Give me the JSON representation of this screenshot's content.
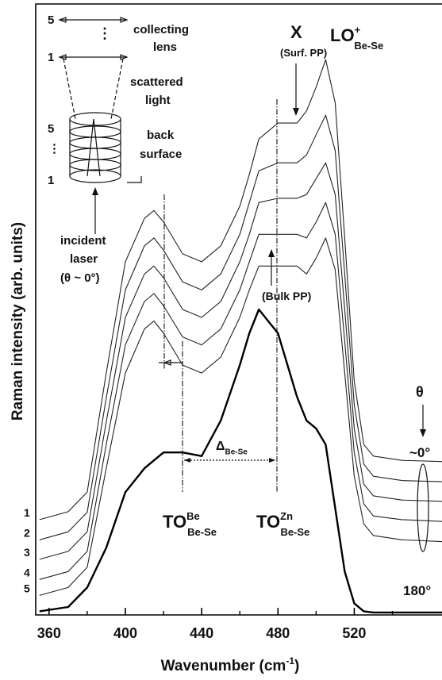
{
  "chart_data": {
    "type": "line",
    "x_label": {
      "text": "Wavenumber (cm",
      "sup": "-1",
      "tail": ")"
    },
    "y_label": "Raman intensity (arb. units)",
    "x": [
      355,
      370,
      380,
      390,
      400,
      410,
      415,
      420,
      430,
      440,
      450,
      460,
      465,
      470,
      480,
      490,
      495,
      500,
      505,
      510,
      515,
      520,
      525,
      530,
      545,
      566
    ],
    "xlim": [
      353,
      566
    ],
    "xticks": [
      360,
      400,
      440,
      480,
      520
    ],
    "xticks_minor": [
      380,
      420,
      460,
      500,
      540
    ],
    "ylim": [
      0,
      100
    ],
    "series": [
      {
        "name": "1",
        "color": "#222",
        "values": [
          15.6,
          16.9,
          20.1,
          39.6,
          57.8,
          64.9,
          66.2,
          64.3,
          59.1,
          57.8,
          60.4,
          66.9,
          72.1,
          77.9,
          80.5,
          80.5,
          82.5,
          86.4,
          90.9,
          83.8,
          61.7,
          38.3,
          27.9,
          26.0,
          25.3,
          25.1
        ]
      },
      {
        "name": "2",
        "color": "#222",
        "values": [
          12.3,
          13.6,
          16.8,
          35.5,
          53.2,
          60.4,
          61.7,
          59.7,
          54.5,
          53.2,
          55.8,
          62.3,
          67.5,
          72.7,
          74.0,
          74.0,
          75.3,
          78.6,
          81.8,
          76.0,
          55.8,
          34.4,
          24.7,
          22.7,
          22.0,
          21.8
        ]
      },
      {
        "name": "3",
        "color": "#222",
        "values": [
          9.1,
          10.4,
          13.6,
          31.6,
          48.7,
          55.8,
          57.1,
          55.2,
          50.0,
          48.7,
          51.3,
          57.8,
          62.3,
          67.5,
          68.2,
          68.2,
          68.8,
          71.4,
          74.0,
          68.8,
          50.0,
          30.5,
          21.4,
          19.5,
          18.8,
          18.6
        ]
      },
      {
        "name": "4",
        "color": "#222",
        "values": [
          5.8,
          7.1,
          10.4,
          27.9,
          44.2,
          51.3,
          52.6,
          50.6,
          45.5,
          44.2,
          46.8,
          53.2,
          57.8,
          62.3,
          62.3,
          62.3,
          61.7,
          64.3,
          67.5,
          62.3,
          44.8,
          26.6,
          18.2,
          16.2,
          15.6,
          15.3
        ]
      },
      {
        "name": "5",
        "color": "#222",
        "values": [
          3.2,
          4.5,
          7.8,
          24.0,
          39.6,
          46.8,
          48.1,
          46.1,
          40.9,
          39.6,
          42.2,
          48.7,
          53.2,
          57.1,
          57.1,
          57.1,
          55.8,
          58.4,
          61.7,
          56.5,
          39.6,
          22.7,
          14.9,
          13.0,
          12.3,
          12.0
        ]
      },
      {
        "color": "#000",
        "values": [
          0.6,
          1.3,
          4.5,
          11.0,
          20.1,
          24.0,
          25.3,
          26.6,
          26.6,
          26.0,
          31.8,
          40.9,
          46.1,
          50.0,
          46.1,
          35.7,
          31.8,
          30.5,
          27.9,
          17.5,
          7.1,
          1.9,
          0.6,
          0.4,
          0.4,
          0.4
        ]
      }
    ],
    "annotations": [
      {
        "text": "5"
      },
      {
        "text": "1"
      },
      {
        "text": "⋮"
      },
      {
        "text": "collecting"
      },
      {
        "text": "lens"
      },
      {
        "text": "scattered"
      },
      {
        "text": "light"
      },
      {
        "text": "back"
      },
      {
        "text": "surface"
      },
      {
        "text": "5"
      },
      {
        "text": "⋮"
      },
      {
        "text": "1"
      },
      {
        "text": "incident"
      },
      {
        "text": "laser"
      },
      {
        "text": "(θ ~ 0°)"
      },
      {
        "text": "X"
      },
      {
        "text": "(Surf. PP)"
      },
      {
        "text": "LO",
        "sup": "+",
        "sub": "Be-Se"
      },
      {
        "text": "(Bulk PP)"
      },
      {
        "text": "Δ",
        "sub": "Be-Se"
      },
      {
        "text": "TO",
        "sup": "Be",
        "sub": "Be-Se"
      },
      {
        "text": "TO",
        "sup": "Zn",
        "sub": "Be-Se"
      },
      {
        "text": "θ"
      },
      {
        "text": "~0°"
      },
      {
        "text": "180°"
      }
    ]
  }
}
